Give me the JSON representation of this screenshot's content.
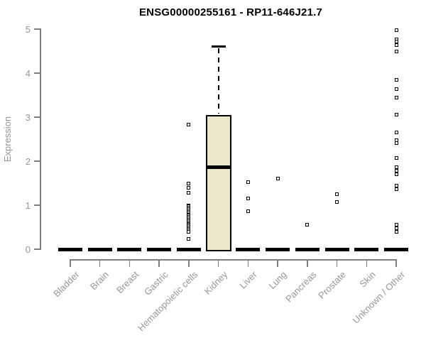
{
  "style": {
    "background": "#ffffff",
    "title_color": "#000000",
    "axis_color": "#7f7f7f",
    "label_color": "#979797",
    "box_fill": "#ebe7cb",
    "box_stroke": "#000000",
    "point_color": "#000000"
  },
  "chart_data": {
    "type": "boxplot",
    "title": "ENSG00000255161 - RP11-646J21.7",
    "xlabel": "",
    "ylabel": "Expression",
    "ylim": [
      0,
      5
    ],
    "yticks": [
      0,
      1,
      2,
      3,
      4,
      5
    ],
    "grid": false,
    "legend": null,
    "categories": [
      "Bladder",
      "Brain",
      "Breast",
      "Gastric",
      "Hematopoietic cells",
      "Kidney",
      "Liver",
      "Lung",
      "Pancreas",
      "Prostate",
      "Skin",
      "Unknown / Other"
    ],
    "boxes": [
      {
        "category": "Bladder",
        "whisker_low": 0,
        "q1": 0,
        "median": 0,
        "q3": 0,
        "whisker_high": 0,
        "outliers": []
      },
      {
        "category": "Brain",
        "whisker_low": 0,
        "q1": 0,
        "median": 0,
        "q3": 0,
        "whisker_high": 0,
        "outliers": []
      },
      {
        "category": "Breast",
        "whisker_low": 0,
        "q1": 0,
        "median": 0,
        "q3": 0,
        "whisker_high": 0,
        "outliers": []
      },
      {
        "category": "Gastric",
        "whisker_low": 0,
        "q1": 0,
        "median": 0,
        "q3": 0,
        "whisker_high": 0,
        "outliers": []
      },
      {
        "category": "Hematopoietic cells",
        "whisker_low": 0,
        "q1": 0,
        "median": 0,
        "q3": 0,
        "whisker_high": 0,
        "outliers": [
          2.83,
          1.5,
          1.39,
          1.29,
          1.0,
          0.97,
          0.94,
          0.91,
          0.88,
          0.85,
          0.82,
          0.79,
          0.76,
          0.73,
          0.7,
          0.67,
          0.64,
          0.61,
          0.58,
          0.55,
          0.52,
          0.49,
          0.46,
          0.43,
          0.4,
          0.24
        ]
      },
      {
        "category": "Kidney",
        "whisker_low": 0,
        "q1": 0,
        "median": 1.87,
        "q3": 3.04,
        "whisker_high": 4.6,
        "outliers": []
      },
      {
        "category": "Liver",
        "whisker_low": 0,
        "q1": 0,
        "median": 0,
        "q3": 0,
        "whisker_high": 0,
        "outliers": [
          1.52,
          1.15,
          0.86
        ]
      },
      {
        "category": "Lung",
        "whisker_low": 0,
        "q1": 0,
        "median": 0,
        "q3": 0,
        "whisker_high": 0,
        "outliers": [
          1.6
        ]
      },
      {
        "category": "Pancreas",
        "whisker_low": 0,
        "q1": 0,
        "median": 0,
        "q3": 0,
        "whisker_high": 0,
        "outliers": [
          0.55
        ]
      },
      {
        "category": "Prostate",
        "whisker_low": 0,
        "q1": 0,
        "median": 0,
        "q3": 0,
        "whisker_high": 0,
        "outliers": [
          1.25,
          1.08
        ]
      },
      {
        "category": "Skin",
        "whisker_low": 0,
        "q1": 0,
        "median": 0,
        "q3": 0,
        "whisker_high": 0,
        "outliers": []
      },
      {
        "category": "Unknown / Other",
        "whisker_low": 0,
        "q1": 0,
        "median": 0,
        "q3": 0,
        "whisker_high": 0,
        "outliers": [
          4.98,
          4.77,
          4.71,
          4.64,
          4.5,
          3.85,
          3.64,
          3.45,
          3.06,
          2.66,
          2.48,
          2.41,
          2.07,
          1.86,
          1.78,
          1.7,
          1.44,
          1.37,
          0.55,
          0.47,
          0.4
        ]
      }
    ]
  }
}
